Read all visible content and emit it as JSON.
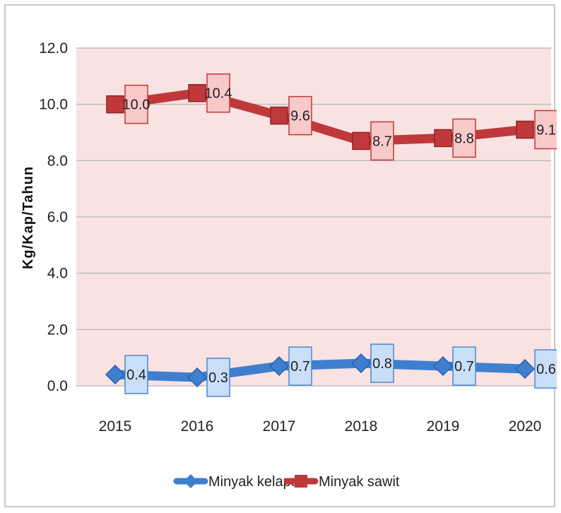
{
  "chart_data": {
    "type": "line",
    "title": "",
    "xlabel": "",
    "ylabel": "Kg/Kap/Tahun",
    "categories": [
      "2015",
      "2016",
      "2017",
      "2018",
      "2019",
      "2020"
    ],
    "yticks": [
      "0.0",
      "2.0",
      "4.0",
      "6.0",
      "8.0",
      "10.0",
      "12.0"
    ],
    "ylim": [
      0,
      12
    ],
    "grid": true,
    "legend_position": "bottom",
    "series": [
      {
        "name": "Minyak kelapa",
        "values": [
          0.4,
          0.3,
          0.7,
          0.8,
          0.7,
          0.6
        ],
        "labels": [
          "0.4",
          "0.3",
          "0.7",
          "0.8",
          "0.7",
          "0.6"
        ],
        "color": "#3f7fcf",
        "label_fill": "#c9dff7",
        "label_stroke": "#4f86cf",
        "marker": "diamond"
      },
      {
        "name": "Minyak sawit",
        "values": [
          10.0,
          10.4,
          9.6,
          8.7,
          8.8,
          9.1
        ],
        "labels": [
          "10.0",
          "10.4",
          "9.6",
          "8.7",
          "8.8",
          "9.1"
        ],
        "color": "#c0393a",
        "label_fill": "#f7c9c9",
        "label_stroke": "#c0393a",
        "marker": "square"
      }
    ],
    "plot_background": "#f9e2e2"
  }
}
